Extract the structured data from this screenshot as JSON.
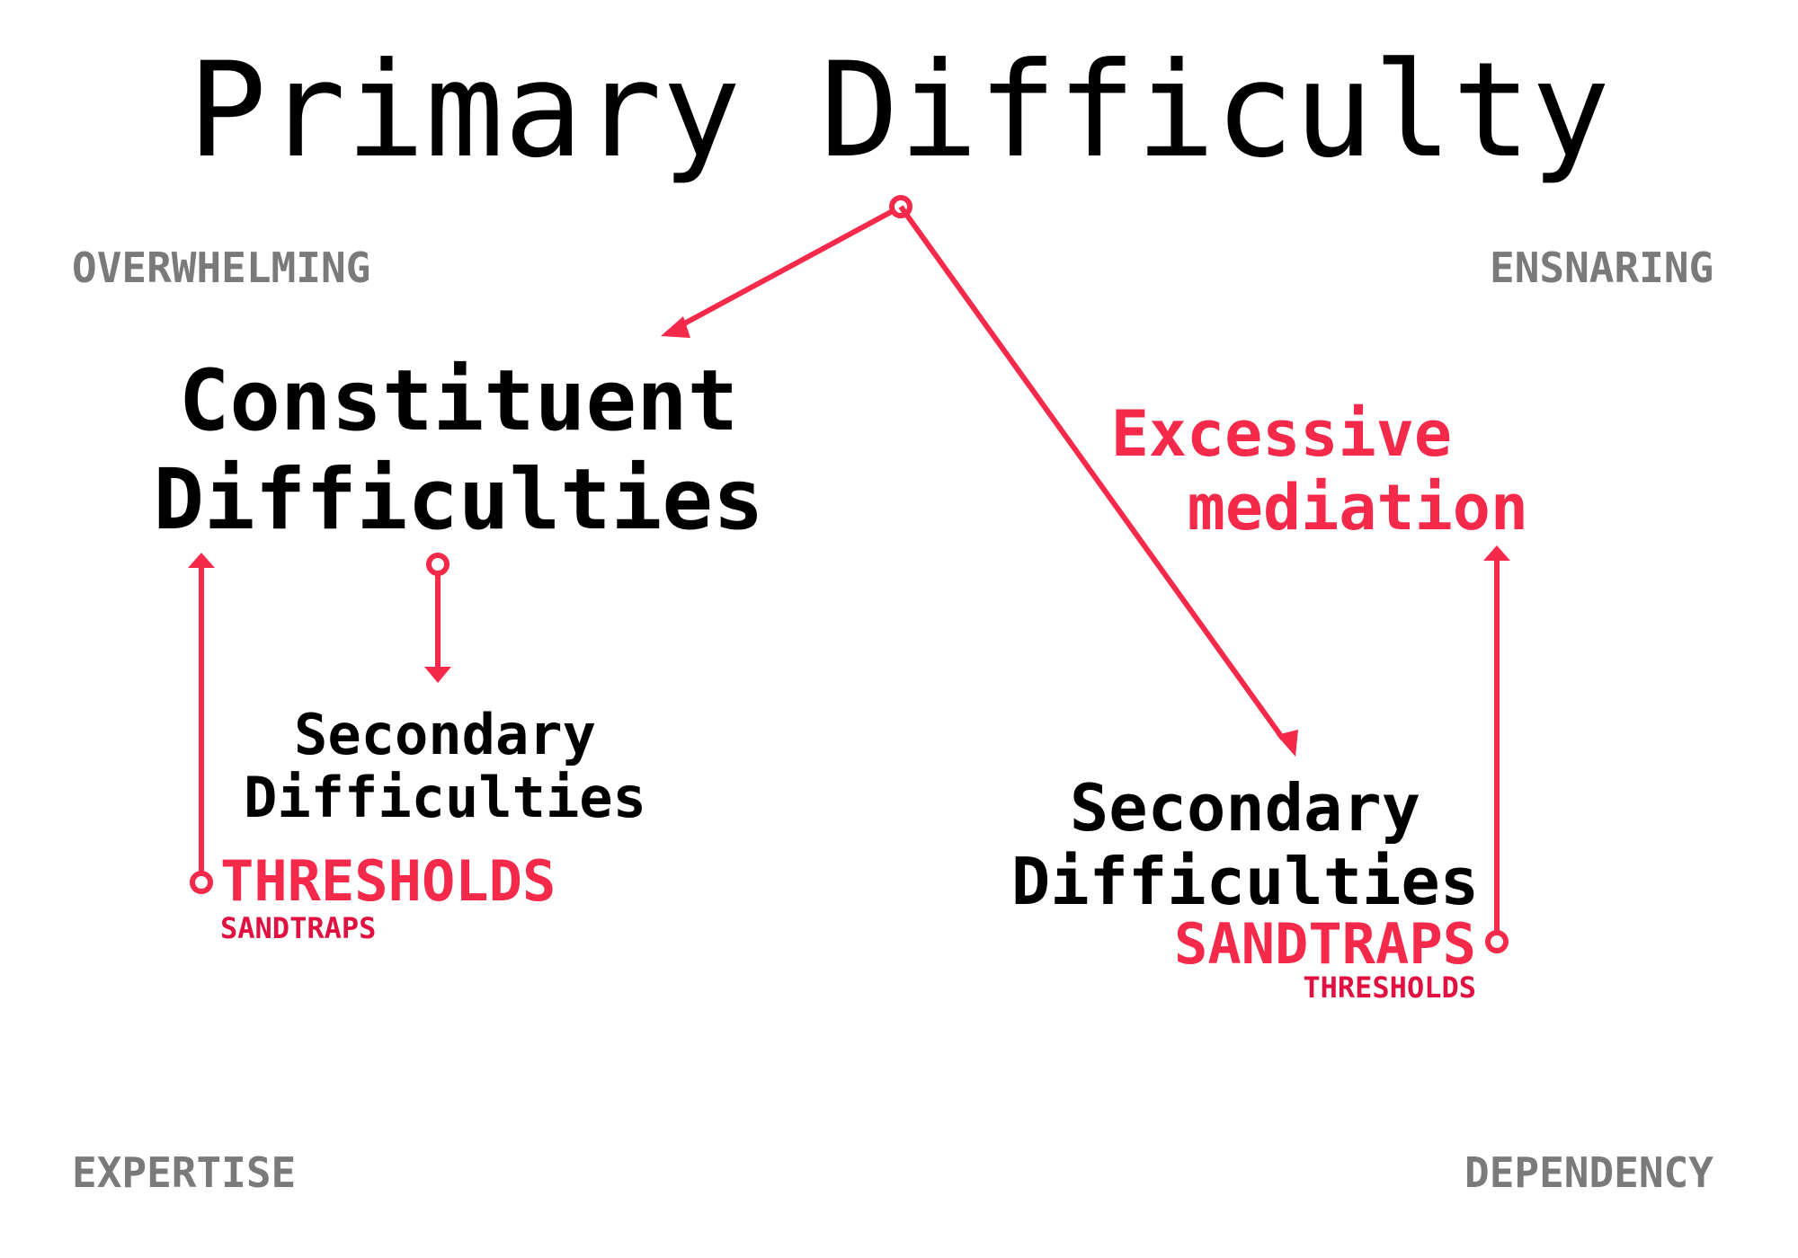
{
  "title": "Primary Difficulty",
  "corners": {
    "top_left": "OVERWHELMING",
    "top_right": "ENSNARING",
    "bottom_left": "EXPERTISE",
    "bottom_right": "DEPENDENCY"
  },
  "constituent": {
    "line1": "Constituent",
    "line2": "Difficulties"
  },
  "excessive": {
    "line1": "Excessive",
    "line2": "mediation"
  },
  "left_secondary": {
    "line1": "Secondary",
    "line2": "Difficulties",
    "primary_tag": "THRESHOLDS",
    "secondary_tag": "SANDTRAPS"
  },
  "right_secondary": {
    "line1": "Secondary",
    "line2": "Difficulties",
    "primary_tag": "SANDTRAPS",
    "secondary_tag": "THRESHOLDS"
  },
  "colors": {
    "accent": "#f5294a",
    "corner_text": "#7a7a7a",
    "main_text": "#000000"
  }
}
